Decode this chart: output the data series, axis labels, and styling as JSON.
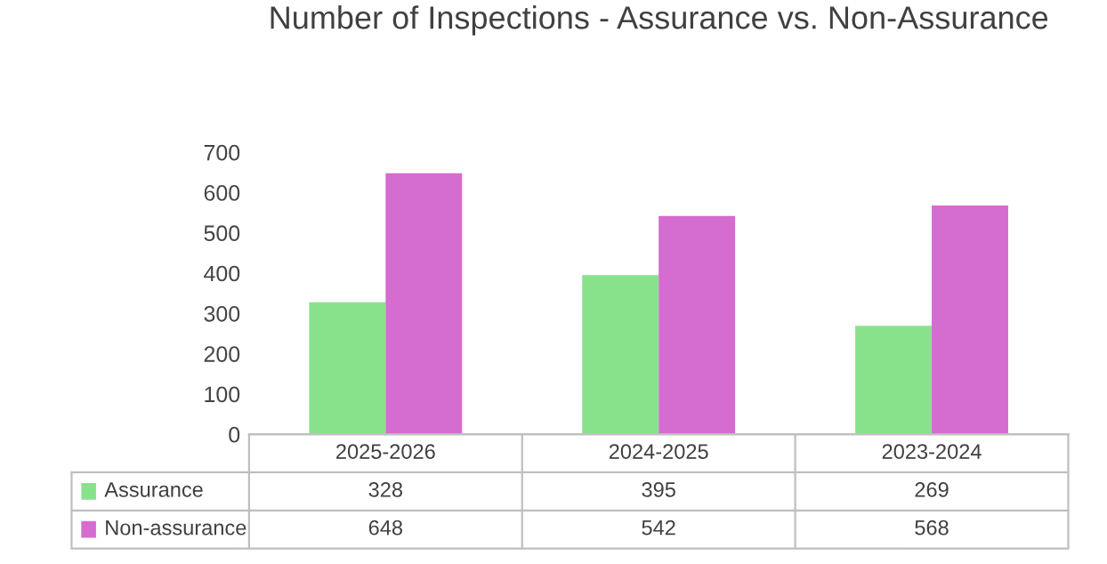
{
  "chart_data": {
    "type": "bar",
    "title": "Number of Inspections - Assurance vs. Non-Assurance",
    "categories": [
      "2025-2026",
      "2024-2025",
      "2023-2024"
    ],
    "series": [
      {
        "name": "Assurance",
        "color": "#88e28c",
        "values": [
          328,
          395,
          269
        ]
      },
      {
        "name": "Non-assurance",
        "color": "#d56cd0",
        "values": [
          648,
          542,
          568
        ]
      }
    ],
    "ylim": [
      0,
      700
    ],
    "yticks": [
      0,
      100,
      200,
      300,
      400,
      500,
      600,
      700
    ],
    "data_labels": true,
    "legend": "bottom",
    "grid": false
  }
}
